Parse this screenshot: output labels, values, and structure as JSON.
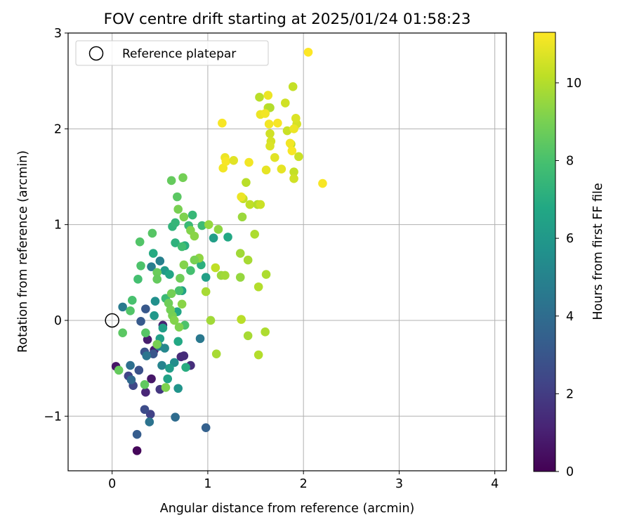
{
  "chart_data": {
    "type": "scatter",
    "title": "FOV centre drift starting at 2025/01/24 01:58:23",
    "xlabel": "Angular distance from reference (arcmin)",
    "ylabel": "Rotation from reference (arcmin)",
    "xlim": [
      -0.46,
      4.12
    ],
    "ylim": [
      -1.57,
      3.0
    ],
    "xticks": [
      0,
      1,
      2,
      3,
      4
    ],
    "xtick_labels": [
      "0",
      "1",
      "2",
      "3",
      "4"
    ],
    "yticks": [
      -1,
      0,
      1,
      2,
      3
    ],
    "ytick_labels": [
      "−1",
      "0",
      "1",
      "2",
      "3"
    ],
    "grid": true,
    "legend": {
      "position": "top-left",
      "entries": [
        {
          "label": "Reference platepar",
          "marker": "open-circle"
        }
      ]
    },
    "reference_point": {
      "x": 0,
      "y": 0
    },
    "colorbar": {
      "label": "Hours from first FF file",
      "range": [
        0,
        11.3
      ],
      "ticks": [
        0,
        2,
        4,
        6,
        8,
        10
      ],
      "tick_labels": [
        "0",
        "2",
        "4",
        "6",
        "8",
        "10"
      ],
      "colormap": "viridis"
    },
    "points": [
      {
        "x": 0.04,
        "y": -0.48,
        "h": 0.6
      },
      {
        "x": 0.26,
        "y": -1.36,
        "h": 0.2
      },
      {
        "x": 0.41,
        "y": -0.61,
        "h": 0.7
      },
      {
        "x": 0.35,
        "y": -0.75,
        "h": 1.2
      },
      {
        "x": 0.37,
        "y": -0.2,
        "h": 0.9
      },
      {
        "x": 0.44,
        "y": -0.31,
        "h": 1.0
      },
      {
        "x": 0.53,
        "y": -0.05,
        "h": 1.1
      },
      {
        "x": 0.72,
        "y": -0.38,
        "h": 1.3
      },
      {
        "x": 0.82,
        "y": -0.47,
        "h": 1.5
      },
      {
        "x": 0.75,
        "y": -0.37,
        "h": 1.4
      },
      {
        "x": 0.5,
        "y": -0.72,
        "h": 1.8
      },
      {
        "x": 0.4,
        "y": -0.98,
        "h": 2.2
      },
      {
        "x": 0.34,
        "y": -0.93,
        "h": 2.6
      },
      {
        "x": 0.22,
        "y": -0.68,
        "h": 2.4
      },
      {
        "x": 0.17,
        "y": -0.58,
        "h": 2.3
      },
      {
        "x": 0.28,
        "y": -0.52,
        "h": 2.8
      },
      {
        "x": 0.34,
        "y": -0.33,
        "h": 2.9
      },
      {
        "x": 0.43,
        "y": -0.35,
        "h": 3.0
      },
      {
        "x": 0.3,
        "y": -0.01,
        "h": 3.2
      },
      {
        "x": 0.35,
        "y": 0.12,
        "h": 3.1
      },
      {
        "x": 0.26,
        "y": -1.19,
        "h": 3.3
      },
      {
        "x": 0.98,
        "y": -1.12,
        "h": 3.5
      },
      {
        "x": 0.66,
        "y": -1.01,
        "h": 4.0
      },
      {
        "x": 0.39,
        "y": -1.06,
        "h": 4.3
      },
      {
        "x": 0.19,
        "y": -0.47,
        "h": 4.1
      },
      {
        "x": 0.2,
        "y": -0.62,
        "h": 3.8
      },
      {
        "x": 0.92,
        "y": -0.19,
        "h": 4.5
      },
      {
        "x": 0.11,
        "y": 0.14,
        "h": 4.6
      },
      {
        "x": 0.36,
        "y": -0.37,
        "h": 4.4
      },
      {
        "x": 0.49,
        "y": -0.27,
        "h": 4.7
      },
      {
        "x": 0.41,
        "y": 0.56,
        "h": 4.8
      },
      {
        "x": 0.5,
        "y": 0.62,
        "h": 4.9
      },
      {
        "x": 0.52,
        "y": -0.47,
        "h": 5.0
      },
      {
        "x": 0.55,
        "y": -0.29,
        "h": 5.2
      },
      {
        "x": 0.65,
        "y": -0.44,
        "h": 5.5
      },
      {
        "x": 0.69,
        "y": -0.71,
        "h": 5.8
      },
      {
        "x": 0.6,
        "y": -0.5,
        "h": 6.2
      },
      {
        "x": 0.58,
        "y": -0.61,
        "h": 6.5
      },
      {
        "x": 0.45,
        "y": 0.2,
        "h": 5.6
      },
      {
        "x": 0.44,
        "y": 0.05,
        "h": 6.0
      },
      {
        "x": 0.53,
        "y": -0.08,
        "h": 6.3
      },
      {
        "x": 0.5,
        "y": -0.19,
        "h": 6.4
      },
      {
        "x": 0.69,
        "y": -0.22,
        "h": 6.8
      },
      {
        "x": 0.77,
        "y": -0.49,
        "h": 7.0
      },
      {
        "x": 0.68,
        "y": 0.09,
        "h": 6.7
      },
      {
        "x": 0.55,
        "y": 0.52,
        "h": 6.1
      },
      {
        "x": 0.6,
        "y": 0.48,
        "h": 6.6
      },
      {
        "x": 0.43,
        "y": 0.7,
        "h": 6.9
      },
      {
        "x": 0.73,
        "y": 0.31,
        "h": 6.5
      },
      {
        "x": 0.98,
        "y": 0.45,
        "h": 6.4
      },
      {
        "x": 1.06,
        "y": 0.86,
        "h": 6.3
      },
      {
        "x": 1.21,
        "y": 0.87,
        "h": 6.8
      },
      {
        "x": 0.93,
        "y": 0.58,
        "h": 7.1
      },
      {
        "x": 0.66,
        "y": 0.81,
        "h": 7.2
      },
      {
        "x": 0.76,
        "y": 0.78,
        "h": 7.0
      },
      {
        "x": 0.63,
        "y": 0.98,
        "h": 7.3
      },
      {
        "x": 0.66,
        "y": 1.02,
        "h": 7.4
      },
      {
        "x": 0.84,
        "y": 1.1,
        "h": 7.5
      },
      {
        "x": 0.8,
        "y": 0.99,
        "h": 7.6
      },
      {
        "x": 0.94,
        "y": 0.99,
        "h": 7.7
      },
      {
        "x": 0.73,
        "y": 0.77,
        "h": 7.8
      },
      {
        "x": 0.82,
        "y": 0.52,
        "h": 7.9
      },
      {
        "x": 0.7,
        "y": 0.31,
        "h": 8.0
      },
      {
        "x": 0.76,
        "y": -0.05,
        "h": 8.1
      },
      {
        "x": 0.56,
        "y": 0.23,
        "h": 7.6
      },
      {
        "x": 0.29,
        "y": 0.82,
        "h": 8.2
      },
      {
        "x": 0.42,
        "y": 0.91,
        "h": 8.3
      },
      {
        "x": 0.3,
        "y": 0.57,
        "h": 8.1
      },
      {
        "x": 0.27,
        "y": 0.43,
        "h": 7.9
      },
      {
        "x": 0.21,
        "y": 0.21,
        "h": 8.0
      },
      {
        "x": 0.19,
        "y": 0.1,
        "h": 8.2
      },
      {
        "x": 0.11,
        "y": -0.13,
        "h": 8.4
      },
      {
        "x": 0.07,
        "y": -0.52,
        "h": 8.6
      },
      {
        "x": 0.35,
        "y": -0.13,
        "h": 8.3
      },
      {
        "x": 0.34,
        "y": -0.67,
        "h": 8.5
      },
      {
        "x": 0.47,
        "y": 0.5,
        "h": 8.7
      },
      {
        "x": 0.47,
        "y": 0.43,
        "h": 8.6
      },
      {
        "x": 0.59,
        "y": 0.18,
        "h": 8.8
      },
      {
        "x": 0.62,
        "y": 0.28,
        "h": 8.9
      },
      {
        "x": 0.63,
        "y": 0.05,
        "h": 9.0
      },
      {
        "x": 0.71,
        "y": 0.44,
        "h": 8.8
      },
      {
        "x": 0.68,
        "y": 1.29,
        "h": 8.4
      },
      {
        "x": 0.62,
        "y": 1.46,
        "h": 8.6
      },
      {
        "x": 0.74,
        "y": 1.49,
        "h": 8.9
      },
      {
        "x": 0.69,
        "y": 1.16,
        "h": 9.0
      },
      {
        "x": 0.75,
        "y": 1.08,
        "h": 9.1
      },
      {
        "x": 0.82,
        "y": 0.94,
        "h": 9.2
      },
      {
        "x": 0.86,
        "y": 0.88,
        "h": 9.3
      },
      {
        "x": 0.91,
        "y": 0.65,
        "h": 9.4
      },
      {
        "x": 1.01,
        "y": 1.0,
        "h": 9.5
      },
      {
        "x": 1.11,
        "y": 0.95,
        "h": 9.4
      },
      {
        "x": 1.14,
        "y": 0.47,
        "h": 9.6
      },
      {
        "x": 1.18,
        "y": 0.47,
        "h": 9.7
      },
      {
        "x": 1.36,
        "y": 1.08,
        "h": 9.6
      },
      {
        "x": 1.34,
        "y": 0.45,
        "h": 9.5
      },
      {
        "x": 1.34,
        "y": 0.7,
        "h": 9.7
      },
      {
        "x": 1.42,
        "y": 0.63,
        "h": 9.8
      },
      {
        "x": 1.49,
        "y": 0.9,
        "h": 9.9
      },
      {
        "x": 1.53,
        "y": 0.35,
        "h": 10.0
      },
      {
        "x": 1.61,
        "y": 0.48,
        "h": 9.9
      },
      {
        "x": 1.42,
        "y": -0.16,
        "h": 9.8
      },
      {
        "x": 1.6,
        "y": -0.12,
        "h": 9.9
      },
      {
        "x": 1.35,
        "y": 0.01,
        "h": 10.1
      },
      {
        "x": 1.53,
        "y": -0.36,
        "h": 10.0
      },
      {
        "x": 1.09,
        "y": -0.35,
        "h": 9.8
      },
      {
        "x": 1.03,
        "y": 0.0,
        "h": 9.7
      },
      {
        "x": 0.98,
        "y": 0.3,
        "h": 9.8
      },
      {
        "x": 0.73,
        "y": 0.17,
        "h": 9.3
      },
      {
        "x": 0.65,
        "y": 0.0,
        "h": 9.2
      },
      {
        "x": 0.56,
        "y": -0.7,
        "h": 9.1
      },
      {
        "x": 0.47,
        "y": -0.25,
        "h": 9.0
      },
      {
        "x": 0.7,
        "y": -0.07,
        "h": 9.1
      },
      {
        "x": 0.61,
        "y": 0.11,
        "h": 8.9
      },
      {
        "x": 0.75,
        "y": 0.58,
        "h": 9.2
      },
      {
        "x": 0.86,
        "y": 0.63,
        "h": 9.0
      },
      {
        "x": 1.08,
        "y": 0.55,
        "h": 10.2
      },
      {
        "x": 1.37,
        "y": 1.27,
        "h": 10.3
      },
      {
        "x": 1.4,
        "y": 1.44,
        "h": 10.1
      },
      {
        "x": 1.44,
        "y": 1.21,
        "h": 10.2
      },
      {
        "x": 1.52,
        "y": 1.21,
        "h": 10.0
      },
      {
        "x": 1.55,
        "y": 1.21,
        "h": 10.4
      },
      {
        "x": 1.54,
        "y": 2.33,
        "h": 10.1
      },
      {
        "x": 1.63,
        "y": 2.22,
        "h": 10.2
      },
      {
        "x": 1.65,
        "y": 2.22,
        "h": 10.0
      },
      {
        "x": 1.89,
        "y": 2.44,
        "h": 10.3
      },
      {
        "x": 1.81,
        "y": 2.27,
        "h": 10.5
      },
      {
        "x": 1.83,
        "y": 1.98,
        "h": 10.4
      },
      {
        "x": 1.87,
        "y": 1.84,
        "h": 10.2
      },
      {
        "x": 1.9,
        "y": 1.55,
        "h": 10.3
      },
      {
        "x": 1.9,
        "y": 1.48,
        "h": 10.5
      },
      {
        "x": 1.95,
        "y": 1.71,
        "h": 10.4
      },
      {
        "x": 1.93,
        "y": 2.05,
        "h": 10.6
      },
      {
        "x": 1.92,
        "y": 2.11,
        "h": 10.7
      },
      {
        "x": 1.65,
        "y": 1.95,
        "h": 10.5
      },
      {
        "x": 1.66,
        "y": 1.87,
        "h": 10.6
      },
      {
        "x": 1.65,
        "y": 1.82,
        "h": 10.7
      },
      {
        "x": 1.7,
        "y": 1.7,
        "h": 10.8
      },
      {
        "x": 1.77,
        "y": 1.58,
        "h": 10.9
      },
      {
        "x": 1.61,
        "y": 1.57,
        "h": 10.9
      },
      {
        "x": 1.55,
        "y": 2.15,
        "h": 11.0
      },
      {
        "x": 1.6,
        "y": 2.16,
        "h": 11.1
      },
      {
        "x": 1.63,
        "y": 2.35,
        "h": 11.0
      },
      {
        "x": 1.64,
        "y": 2.05,
        "h": 11.1
      },
      {
        "x": 1.73,
        "y": 2.06,
        "h": 11.2
      },
      {
        "x": 1.86,
        "y": 1.85,
        "h": 11.1
      },
      {
        "x": 1.88,
        "y": 1.77,
        "h": 11.2
      },
      {
        "x": 1.9,
        "y": 2.0,
        "h": 11.0
      },
      {
        "x": 2.05,
        "y": 2.8,
        "h": 11.3
      },
      {
        "x": 2.2,
        "y": 1.43,
        "h": 11.2
      },
      {
        "x": 1.15,
        "y": 2.06,
        "h": 11.2
      },
      {
        "x": 1.16,
        "y": 1.59,
        "h": 11.1
      },
      {
        "x": 1.18,
        "y": 1.7,
        "h": 11.0
      },
      {
        "x": 1.19,
        "y": 1.66,
        "h": 11.2
      },
      {
        "x": 1.27,
        "y": 1.67,
        "h": 10.8
      },
      {
        "x": 1.43,
        "y": 1.65,
        "h": 11.1
      },
      {
        "x": 1.35,
        "y": 1.29,
        "h": 11.0
      }
    ]
  }
}
